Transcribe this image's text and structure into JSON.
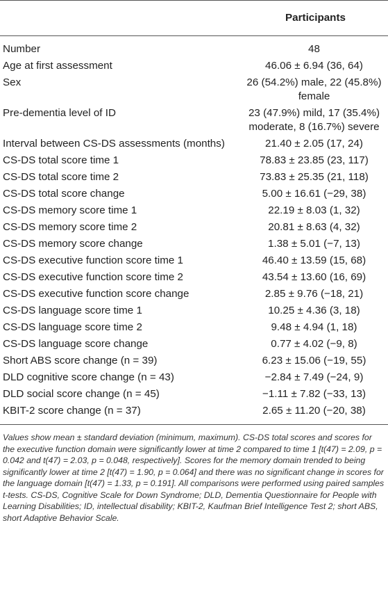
{
  "table": {
    "column_headers": [
      "",
      "Participants"
    ],
    "rows": [
      {
        "label": "Number",
        "value": "48"
      },
      {
        "label": "Age at first assessment",
        "value": "46.06 ± 6.94 (36, 64)"
      },
      {
        "label": "Sex",
        "value": "26 (54.2%) male, 22 (45.8%) female"
      },
      {
        "label": "Pre-dementia level of ID",
        "value": "23 (47.9%) mild, 17 (35.4%) moderate, 8 (16.7%) severe"
      },
      {
        "label": "Interval between CS-DS assessments (months)",
        "value": "21.40 ± 2.05 (17, 24)"
      },
      {
        "label": "CS-DS total score time 1",
        "value": "78.83 ± 23.85 (23, 117)"
      },
      {
        "label": "CS-DS total score time 2",
        "value": "73.83 ± 25.35 (21, 118)"
      },
      {
        "label": "CS-DS total score change",
        "value": "5.00 ± 16.61 (−29, 38)"
      },
      {
        "label": "CS-DS memory score time 1",
        "value": "22.19 ± 8.03 (1, 32)"
      },
      {
        "label": "CS-DS memory score time 2",
        "value": "20.81 ± 8.63 (4, 32)"
      },
      {
        "label": "CS-DS memory score change",
        "value": "1.38 ± 5.01 (−7, 13)"
      },
      {
        "label": "CS-DS executive function score time 1",
        "value": "46.40 ± 13.59 (15, 68)"
      },
      {
        "label": "CS-DS executive function score time 2",
        "value": "43.54 ± 13.60 (16, 69)"
      },
      {
        "label": "CS-DS executive function score change",
        "value": "2.85 ± 9.76 (−18, 21)"
      },
      {
        "label": "CS-DS language score time 1",
        "value": "10.25 ± 4.36 (3, 18)"
      },
      {
        "label": "CS-DS language score time 2",
        "value": "9.48 ± 4.94 (1, 18)"
      },
      {
        "label": "CS-DS language score change",
        "value": "0.77 ± 4.02 (−9, 8)"
      },
      {
        "label": "Short ABS score change (n = 39)",
        "value": "6.23 ± 15.06 (−19, 55)"
      },
      {
        "label": "DLD cognitive score change (n = 43)",
        "value": "−2.84 ± 7.49 (−24, 9)"
      },
      {
        "label": "DLD social score change (n = 45)",
        "value": "−1.11 ± 7.82 (−33, 13)"
      },
      {
        "label": "KBIT-2 score change (n = 37)",
        "value": "2.65 ± 11.20 (−20, 38)"
      }
    ]
  },
  "footnote": "Values show mean ± standard deviation (minimum, maximum). CS-DS total scores and scores for the executive function domain were significantly lower at time 2 compared to time 1 [t(47) = 2.09, p = 0.042 and t(47) = 2.03, p = 0.048, respectively]. Scores for the memory domain trended to being significantly lower at time 2 [t(47) = 1.90, p = 0.064] and there was no significant change in scores for the language domain [t(47) = 1.33, p = 0.191]. All comparisons were performed using paired samples t-tests. CS-DS, Cognitive Scale for Down Syndrome; DLD, Dementia Questionnaire for People with Learning Disabilities; ID, intellectual disability; KBIT-2, Kaufman Brief Intelligence Test 2; short ABS, short Adaptive Behavior Scale."
}
